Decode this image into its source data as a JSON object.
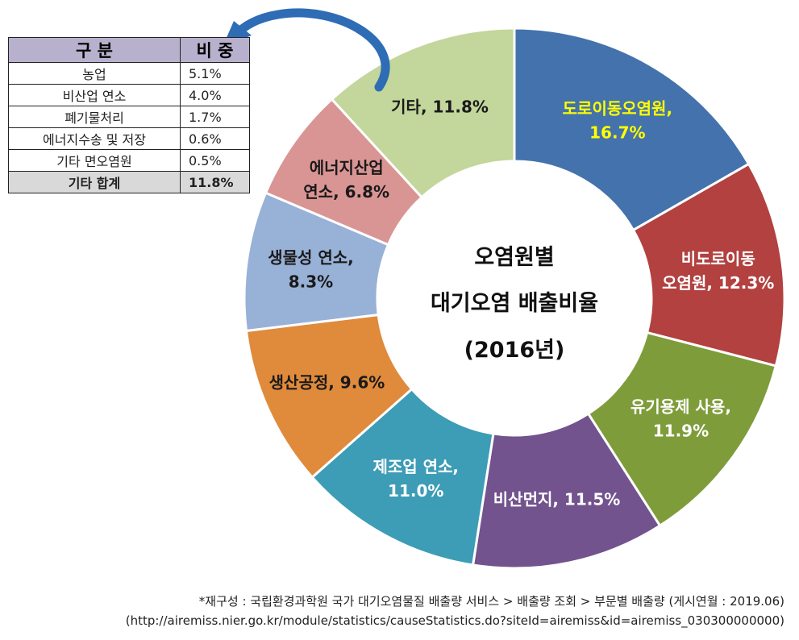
{
  "chart_data": {
    "type": "pie",
    "title": [
      "오염원별",
      "대기오염 배출비율",
      "(2016년)"
    ],
    "slices": [
      {
        "name": "도로이동오염원,",
        "value": 16.7,
        "label": "16.7%",
        "color": "#4472ad",
        "text_color": "#ffff00"
      },
      {
        "name": "비도로이동 오염원,",
        "value": 12.3,
        "label": "12.3%",
        "color": "#b24140",
        "text_color": "#ffffff"
      },
      {
        "name": "유기용제 사용,",
        "value": 11.9,
        "label": "11.9%",
        "color": "#7f9c3b",
        "text_color": "#ffffff"
      },
      {
        "name": "비산먼지,",
        "value": 11.5,
        "label": "11.5%",
        "color": "#72538e",
        "text_color": "#ffffff"
      },
      {
        "name": "제조업 연소,",
        "value": 11.0,
        "label": "11.0%",
        "color": "#3d9cb6",
        "text_color": "#ffffff"
      },
      {
        "name": "생산공정,",
        "value": 9.6,
        "label": "9.6%",
        "color": "#e08a3c",
        "text_color": "#1a1a1a"
      },
      {
        "name": "생물성 연소,",
        "value": 8.3,
        "label": "8.3%",
        "color": "#98b1d7",
        "text_color": "#1a1a1a"
      },
      {
        "name": "에너지산업 연소,",
        "value": 6.8,
        "label": "6.8%",
        "color": "#d99594",
        "text_color": "#1a1a1a"
      },
      {
        "name": "기타,",
        "value": 11.8,
        "label": "11.8%",
        "color": "#c3d69b",
        "text_color": "#1a1a1a"
      }
    ]
  },
  "table": {
    "headers": [
      "구 분",
      "비 중"
    ],
    "rows": [
      [
        "농업",
        "5.1%"
      ],
      [
        "비산업 연소",
        "4.0%"
      ],
      [
        "폐기물처리",
        "1.7%"
      ],
      [
        "에너지수송 및 저장",
        "0.6%"
      ],
      [
        "기타 면오염원",
        "0.5%"
      ]
    ],
    "total": [
      "기타 합계",
      "11.8%"
    ]
  },
  "source": {
    "line1": "*재구성 : 국립환경과학원 국가 대기오염물질 배출량 서비스 > 배출량 조회 > 부문별 배출량 (게시연월 : 2019.06)",
    "line2": "(http://airemiss.nier.go.kr/module/statistics/causeStatistics.do?siteId=airemiss&id=airemiss_030300000000)"
  },
  "colors": {
    "arrow": "#2e6cb5",
    "table_header": "#b8b1cd",
    "table_total": "#d9d9d9"
  }
}
